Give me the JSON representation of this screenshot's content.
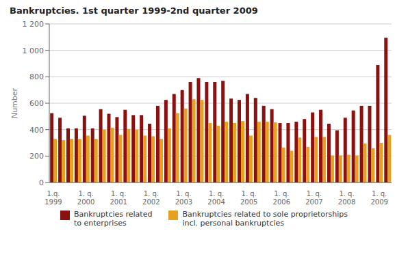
{
  "chart_data": {
    "type": "bar",
    "title": "Bankruptcies. 1st quarter 1999-2nd quarter 2009",
    "ylabel": "Number",
    "categories": [
      "1.q.\n1999",
      null,
      null,
      null,
      "1. q.\n2000",
      null,
      null,
      null,
      "1. q.\n2001",
      null,
      null,
      null,
      "1. q.\n2002",
      null,
      null,
      null,
      "1. q.\n2003",
      null,
      null,
      null,
      "1. q.\n2004",
      null,
      null,
      null,
      "1. q.\n2005",
      null,
      null,
      null,
      "1. q.\n2006",
      null,
      null,
      null,
      "1. q.\n2007",
      null,
      null,
      null,
      "1. q.\n2008",
      null,
      null,
      null,
      "1. q.\n2009",
      null
    ],
    "series": [
      {
        "name": "Bankruptcies related\nto enterprises",
        "color": "#8B1010",
        "values": [
          525,
          490,
          410,
          410,
          505,
          410,
          555,
          520,
          495,
          550,
          510,
          510,
          445,
          580,
          625,
          670,
          700,
          760,
          790,
          760,
          760,
          770,
          635,
          625,
          670,
          640,
          580,
          555,
          450,
          450,
          460,
          480,
          530,
          550,
          445,
          395,
          490,
          545,
          580,
          580,
          890,
          1095
        ]
      },
      {
        "name": "Bankruptcies related to sole proprietorships\nincl. personal bankruptcies",
        "color": "#E8A020",
        "values": [
          330,
          320,
          330,
          330,
          355,
          330,
          400,
          415,
          360,
          405,
          400,
          355,
          350,
          330,
          410,
          525,
          560,
          630,
          625,
          450,
          430,
          460,
          450,
          465,
          355,
          460,
          460,
          455,
          265,
          240,
          340,
          270,
          345,
          345,
          205,
          205,
          210,
          205,
          295,
          260,
          300,
          360
        ]
      }
    ],
    "ylim": [
      0,
      1200
    ],
    "yticks": [
      0,
      200,
      400,
      600,
      800,
      {
        "value": 1000,
        "label": "1 000"
      },
      {
        "value": 1200,
        "label": "1 200"
      }
    ],
    "grid": true,
    "legend": "bottom"
  }
}
